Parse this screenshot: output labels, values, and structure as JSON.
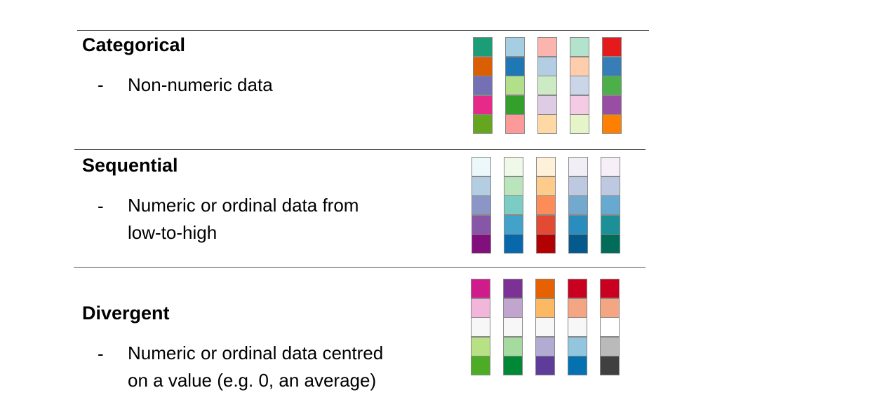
{
  "sections": [
    {
      "title": "Categorical",
      "bullet": "-",
      "lines": [
        "Non-numeric data"
      ],
      "palettes": [
        [
          "#1b9e77",
          "#d95f02",
          "#7570b3",
          "#e7298a",
          "#66a61e"
        ],
        [
          "#a6cee3",
          "#1f78b4",
          "#b2df8a",
          "#33a02c",
          "#fb9a99"
        ],
        [
          "#fbb4ae",
          "#b3cde3",
          "#ccebc5",
          "#decbe4",
          "#fed9a6"
        ],
        [
          "#b3e2cd",
          "#fdcdac",
          "#cbd5e8",
          "#f4cae4",
          "#e6f5c9"
        ],
        [
          "#e41a1c",
          "#377eb8",
          "#4daf4a",
          "#984ea3",
          "#ff7f00"
        ]
      ]
    },
    {
      "title": "Sequential",
      "bullet": "-",
      "lines": [
        "Numeric or ordinal data from",
        "low-to-high"
      ],
      "palettes": [
        [
          "#edf8fb",
          "#b3cde3",
          "#8c96c6",
          "#8856a7",
          "#810f7c"
        ],
        [
          "#f0f9e8",
          "#bae4bc",
          "#7bccc4",
          "#43a2ca",
          "#0868ac"
        ],
        [
          "#fef0d9",
          "#fdcc8a",
          "#fc8d59",
          "#e34a33",
          "#b30000"
        ],
        [
          "#f1eef6",
          "#bdc9e1",
          "#74a9cf",
          "#2b8cbe",
          "#045a8d"
        ],
        [
          "#f6eff7",
          "#bdc9e1",
          "#67a9cf",
          "#1c9099",
          "#016c59"
        ]
      ]
    },
    {
      "title": "Divergent",
      "bullet": "-",
      "lines": [
        "Numeric or ordinal data centred",
        "on a value (e.g. 0, an average)"
      ],
      "palettes": [
        [
          "#d01c8b",
          "#f1b6da",
          "#f7f7f7",
          "#b8e186",
          "#4dac26"
        ],
        [
          "#7b3294",
          "#c2a5cf",
          "#f7f7f7",
          "#a6dba0",
          "#008837"
        ],
        [
          "#e66101",
          "#fdb863",
          "#f7f7f7",
          "#b2abd2",
          "#5e3c99"
        ],
        [
          "#ca0020",
          "#f4a582",
          "#f7f7f7",
          "#92c5de",
          "#0571b0"
        ],
        [
          "#ca0020",
          "#f4a582",
          "#ffffff",
          "#bababa",
          "#404040"
        ]
      ]
    }
  ]
}
